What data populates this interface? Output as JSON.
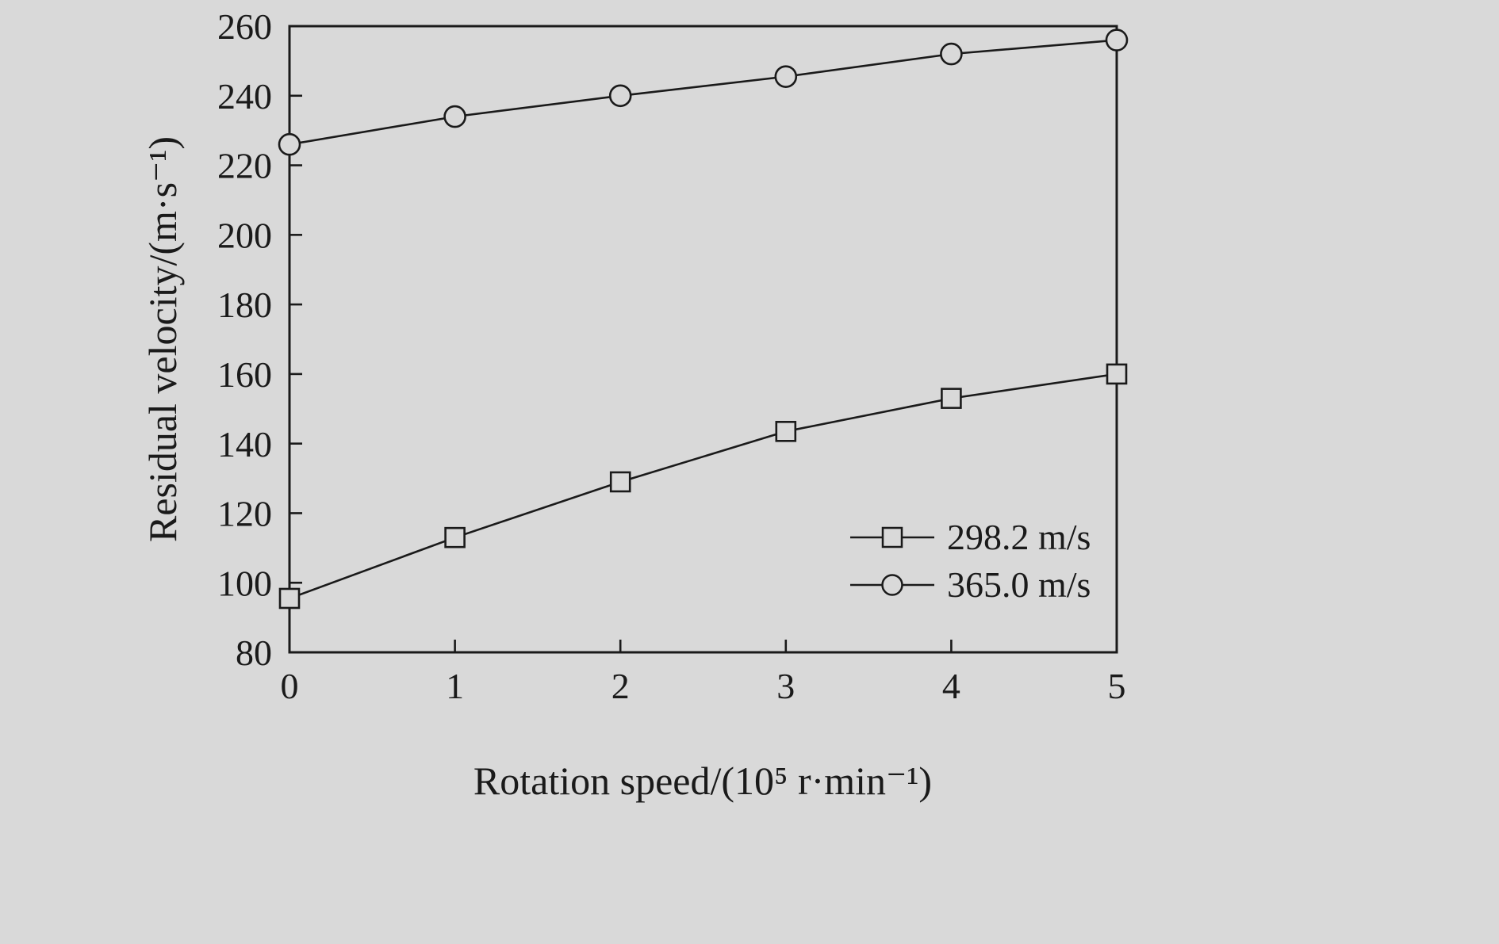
{
  "chart_data": {
    "type": "line",
    "title": "",
    "xlabel": "Rotation speed/(10⁵ r·min⁻¹)",
    "ylabel": "Residual velocity/(m·s⁻¹)",
    "x": [
      0,
      1,
      2,
      3,
      4,
      5
    ],
    "series": [
      {
        "name": "298.2 m/s",
        "marker": "square",
        "values": [
          95.5,
          113,
          129,
          143.5,
          153,
          160
        ]
      },
      {
        "name": "365.0 m/s",
        "marker": "circle",
        "values": [
          226,
          234,
          240,
          245.5,
          252,
          256
        ]
      }
    ],
    "xlim": [
      0,
      5
    ],
    "ylim": [
      80,
      260
    ],
    "xticks": [
      0,
      1,
      2,
      3,
      4,
      5
    ],
    "yticks": [
      80,
      100,
      120,
      140,
      160,
      180,
      200,
      220,
      240,
      260
    ],
    "grid": false,
    "legend_position": "bottom-right",
    "line_color": "#1a1a1a",
    "text_color": "#1a1a1a",
    "background": "#d9d9d9"
  }
}
